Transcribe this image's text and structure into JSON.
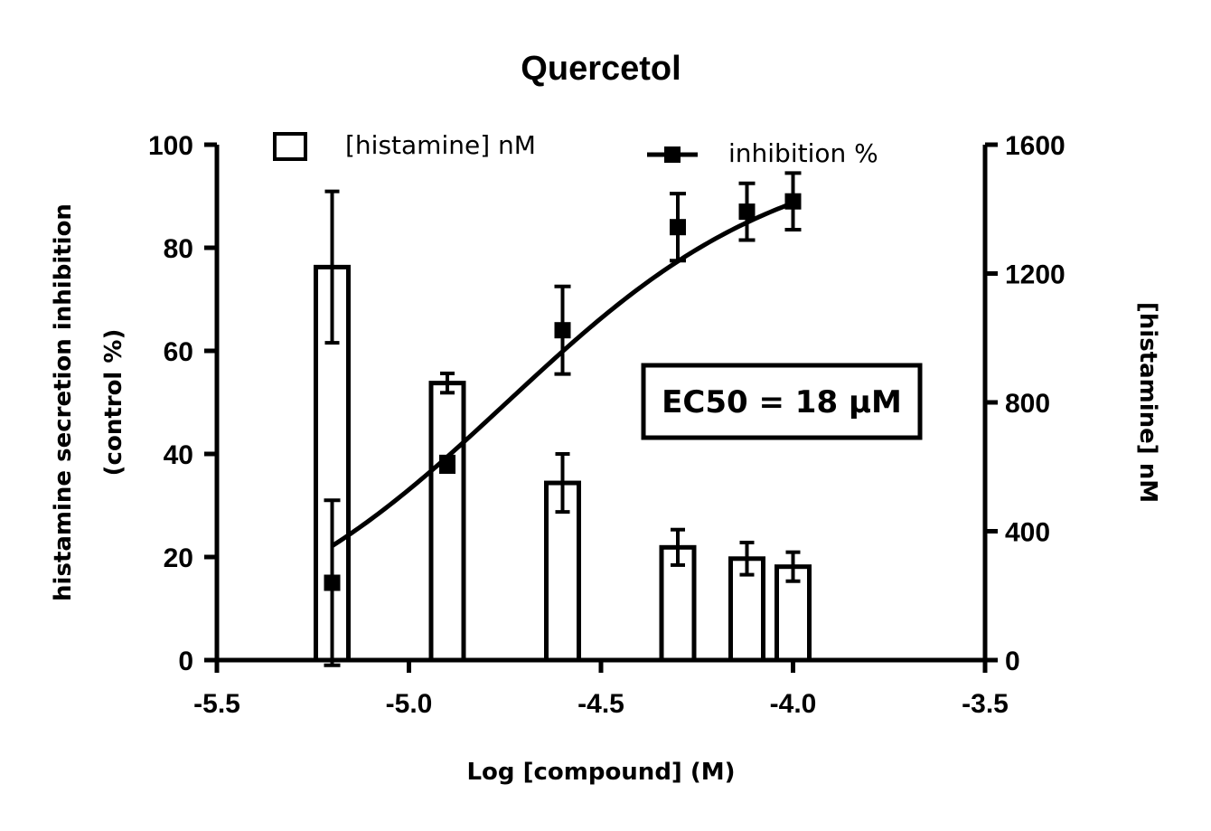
{
  "chart_data": {
    "type": "bar+scatter",
    "title": "Quercetol",
    "xlabel": "Log [compound] (M)",
    "ylabel_left_line1": "histamine secretion inhibition",
    "ylabel_left_line2": "(control %)",
    "ylabel_right": "[histamine] nM",
    "xlim": [
      -5.5,
      -3.5
    ],
    "ylim_left": [
      0,
      100
    ],
    "ylim_right": [
      0,
      1600
    ],
    "x_ticks": [
      "-5.5",
      "-5.0",
      "-4.5",
      "-4.0",
      "-3.5"
    ],
    "y_left_ticks": [
      "0",
      "20",
      "40",
      "60",
      "80",
      "100"
    ],
    "y_right_ticks": [
      "0",
      "400",
      "800",
      "1200",
      "1600"
    ],
    "x": [
      -5.2,
      -4.9,
      -4.6,
      -4.3,
      -4.12,
      -4.0
    ],
    "series": [
      {
        "name": "[histamine] nM",
        "kind": "bar",
        "axis": "right",
        "values": [
          1220,
          860,
          550,
          350,
          315,
          290
        ],
        "errors": [
          235,
          30,
          90,
          55,
          50,
          45
        ]
      },
      {
        "name": "inhibition %",
        "kind": "scatter",
        "axis": "left",
        "values": [
          15,
          38,
          64,
          84,
          87,
          89
        ],
        "errors": [
          16,
          1.5,
          8.5,
          6.5,
          5.5,
          5.5
        ]
      }
    ],
    "fit": {
      "name": "inhibition % fit",
      "model": "sigmoid",
      "bottom": 0,
      "top": 100,
      "log_ec50": -4.745,
      "hill": 1.2,
      "x_range": [
        -5.2,
        -4.0
      ]
    },
    "annotation": "EC50 = 18 µM"
  }
}
